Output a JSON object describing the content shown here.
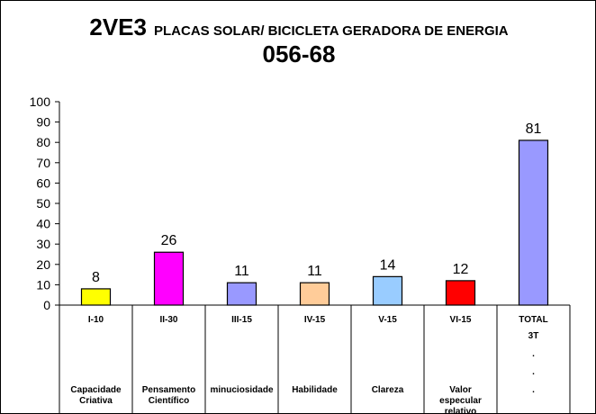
{
  "title": "2VE3",
  "subtitle": "PLACAS SOLAR/ BICICLETA GERADORA DE ENERGIA",
  "code": "056-68",
  "chart_data": {
    "type": "bar",
    "categories": [
      "I-10",
      "II-30",
      "III-15",
      "IV-15",
      "V-15",
      "VI-15",
      "TOTAL"
    ],
    "descriptions": [
      [
        "Capacidade",
        "Criativa"
      ],
      [
        "Pensamento",
        "Científico"
      ],
      [
        "minuciosidade"
      ],
      [
        "Habilidade"
      ],
      [
        "Clareza"
      ],
      [
        "Valor",
        "especular",
        "relativo"
      ],
      []
    ],
    "total_extra": [
      "3T",
      ".",
      ".",
      "."
    ],
    "values": [
      8,
      26,
      11,
      11,
      14,
      12,
      81
    ],
    "colors": [
      "#ffff00",
      "#ff00ff",
      "#9999ff",
      "#ffcc99",
      "#99ccff",
      "#ff0000",
      "#9999ff"
    ],
    "ylim": [
      0,
      100
    ],
    "yticks": [
      0,
      10,
      20,
      30,
      40,
      50,
      60,
      70,
      80,
      90,
      100
    ],
    "grid": false
  }
}
